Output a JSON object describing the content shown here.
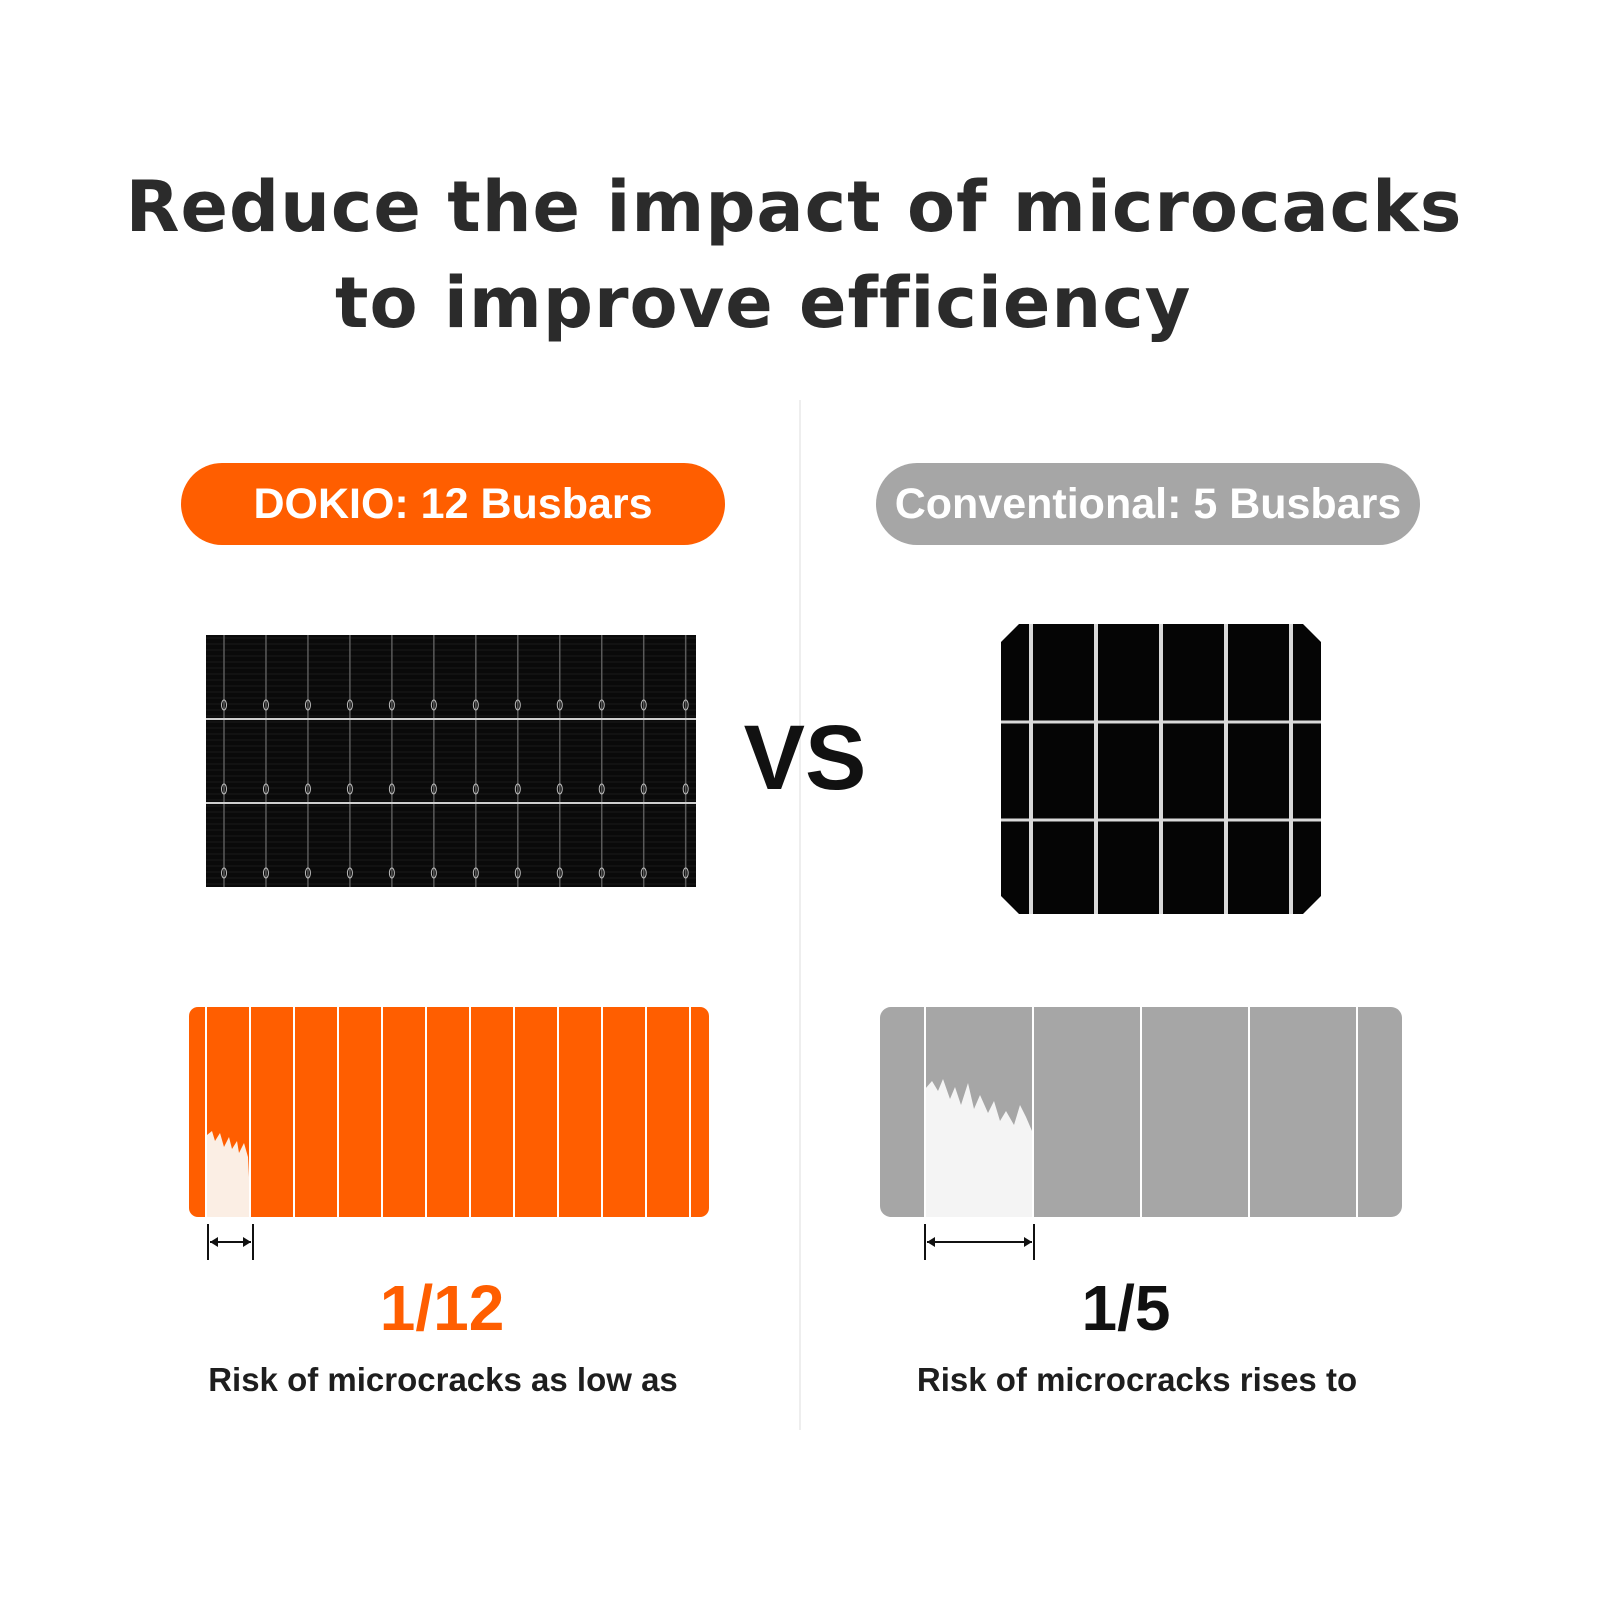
{
  "title": {
    "line1": "Reduce the impact of microcacks",
    "line2": "to improve efficiency"
  },
  "left": {
    "label": "DOKIO: 12 Busbars",
    "color": "#ff5e00",
    "busbars": 12,
    "ratio": "1/12",
    "caption": "Risk of microcracks as low as"
  },
  "right": {
    "label": "Conventional: 5 Busbars",
    "color": "#a6a6a6",
    "busbars": 5,
    "ratio": "1/5",
    "caption": "Risk of microcracks rises to"
  },
  "vs_label": "VS",
  "colors": {
    "title": "#2b2b2b",
    "cell": "#050505",
    "crack": "#f4f4f4"
  }
}
